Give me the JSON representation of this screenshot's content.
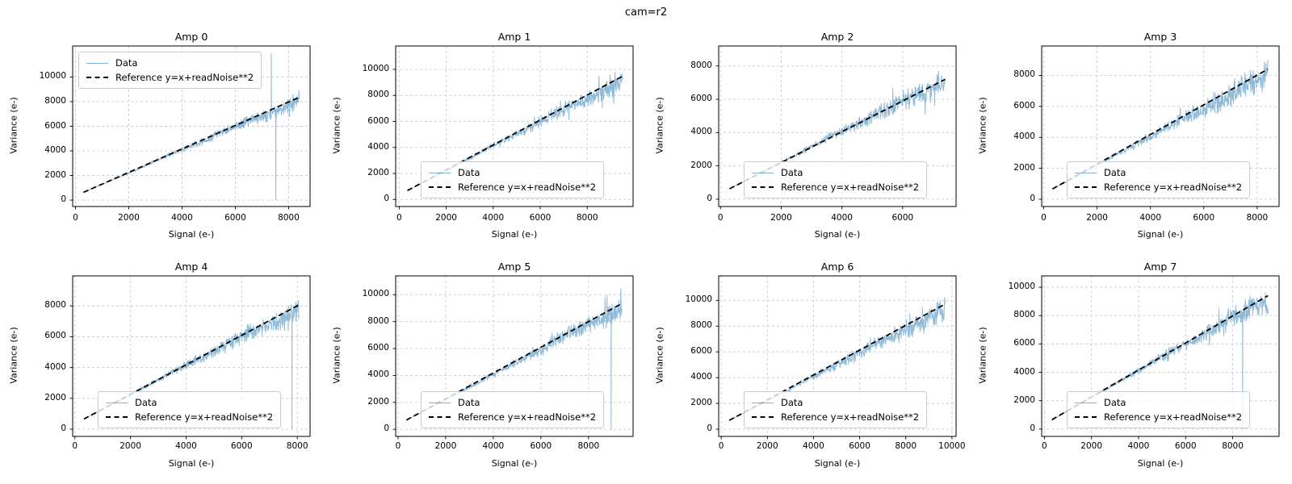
{
  "figure": {
    "suptitle": "cam=r2",
    "background": "#ffffff"
  },
  "chart_data": {
    "type": "line",
    "suptitle": "cam=r2",
    "xlabel": "Signal (e-)",
    "ylabel": "Variance (e-)",
    "grid": true,
    "legend": {
      "data_label": "Data",
      "ref_label": "Reference y=x+readNoise**2"
    },
    "colors": {
      "data_line": "#1f77b4",
      "data_alpha": 0.5,
      "reference_line": "#000000",
      "grid_line": "#cccccc",
      "spine": "#000000"
    },
    "subplots": [
      {
        "title": "Amp 0",
        "legend_position": "upper left",
        "xlim": [
          -105,
          8805
        ],
        "ylim": [
          -520,
          12520
        ],
        "xticks": [
          0,
          2000,
          4000,
          6000,
          8000
        ],
        "yticks": [
          0,
          2000,
          4000,
          6000,
          8000,
          10000
        ],
        "x_start": 300,
        "x_end": 8400,
        "ref_slope": 0.952,
        "ref_intercept": 350,
        "data_slope": 0.93,
        "noise_base": 0.02,
        "noise_growth": 0.095,
        "dropouts": [
          7520
        ],
        "up_spikes": [
          [
            7350,
            11900
          ]
        ],
        "seed": 101
      },
      {
        "title": "Amp 1",
        "legend_position": "lower left",
        "xlim": [
          -150,
          9950
        ],
        "ylim": [
          -540,
          11800
        ],
        "xticks": [
          0,
          2000,
          4000,
          6000,
          8000
        ],
        "yticks": [
          0,
          2000,
          4000,
          6000,
          8000,
          10000
        ],
        "x_start": 350,
        "x_end": 9500,
        "ref_slope": 0.96,
        "ref_intercept": 350,
        "data_slope": 0.94,
        "noise_base": 0.02,
        "noise_growth": 0.1,
        "dropouts": [],
        "up_spikes": [],
        "seed": 202
      },
      {
        "title": "Amp 2",
        "legend_position": "lower left",
        "xlim": [
          -60,
          7760
        ],
        "ylim": [
          -440,
          9200
        ],
        "xticks": [
          0,
          2000,
          4000,
          6000
        ],
        "yticks": [
          0,
          2000,
          4000,
          6000,
          8000
        ],
        "x_start": 300,
        "x_end": 7400,
        "ref_slope": 0.925,
        "ref_intercept": 350,
        "data_slope": 0.93,
        "noise_base": 0.02,
        "noise_growth": 0.12,
        "dropouts": [],
        "up_spikes": [],
        "seed": 303
      },
      {
        "title": "Amp 3",
        "legend_position": "lower left",
        "xlim": [
          -75,
          8820
        ],
        "ylim": [
          -470,
          9900
        ],
        "xticks": [
          0,
          2000,
          4000,
          6000,
          8000
        ],
        "yticks": [
          0,
          2000,
          4000,
          6000,
          8000
        ],
        "x_start": 330,
        "x_end": 8400,
        "ref_slope": 0.958,
        "ref_intercept": 350,
        "data_slope": 0.92,
        "noise_base": 0.02,
        "noise_growth": 0.13,
        "dropouts": [],
        "up_spikes": [],
        "seed": 404
      },
      {
        "title": "Amp 4",
        "legend_position": "lower left",
        "xlim": [
          -80,
          8460
        ],
        "ylim": [
          -470,
          9950
        ],
        "xticks": [
          0,
          2000,
          4000,
          6000,
          8000
        ],
        "yticks": [
          0,
          2000,
          4000,
          6000,
          8000
        ],
        "x_start": 320,
        "x_end": 8050,
        "ref_slope": 0.957,
        "ref_intercept": 350,
        "data_slope": 0.94,
        "noise_base": 0.02,
        "noise_growth": 0.11,
        "dropouts": [
          7810
        ],
        "up_spikes": [],
        "seed": 505
      },
      {
        "title": "Amp 5",
        "legend_position": "lower left",
        "xlim": [
          -100,
          9870
        ],
        "ylim": [
          -530,
          11400
        ],
        "xticks": [
          0,
          2000,
          4000,
          6000,
          8000
        ],
        "yticks": [
          0,
          2000,
          4000,
          6000,
          8000,
          10000
        ],
        "x_start": 350,
        "x_end": 9400,
        "ref_slope": 0.957,
        "ref_intercept": 350,
        "data_slope": 0.93,
        "noise_base": 0.02,
        "noise_growth": 0.1,
        "dropouts": [
          8950
        ],
        "up_spikes": [],
        "seed": 606
      },
      {
        "title": "Amp 6",
        "legend_position": "lower left",
        "xlim": [
          -110,
          10180
        ],
        "ylim": [
          -560,
          11900
        ],
        "xticks": [
          0,
          2000,
          4000,
          6000,
          8000,
          10000
        ],
        "yticks": [
          0,
          2000,
          4000,
          6000,
          8000,
          10000
        ],
        "x_start": 350,
        "x_end": 9700,
        "ref_slope": 0.964,
        "ref_intercept": 350,
        "data_slope": 0.93,
        "noise_base": 0.02,
        "noise_growth": 0.115,
        "dropouts": [],
        "up_spikes": [],
        "seed": 707
      },
      {
        "title": "Amp 7",
        "legend_position": "lower left",
        "xlim": [
          -115,
          9970
        ],
        "ylim": [
          -520,
          10800
        ],
        "xticks": [
          0,
          2000,
          4000,
          6000,
          8000
        ],
        "yticks": [
          0,
          2000,
          4000,
          6000,
          8000,
          10000
        ],
        "x_start": 320,
        "x_end": 9500,
        "ref_slope": 0.953,
        "ref_intercept": 350,
        "data_slope": 0.94,
        "noise_base": 0.02,
        "noise_growth": 0.1,
        "dropouts": [
          8420
        ],
        "up_spikes": [],
        "seed": 808
      }
    ]
  }
}
